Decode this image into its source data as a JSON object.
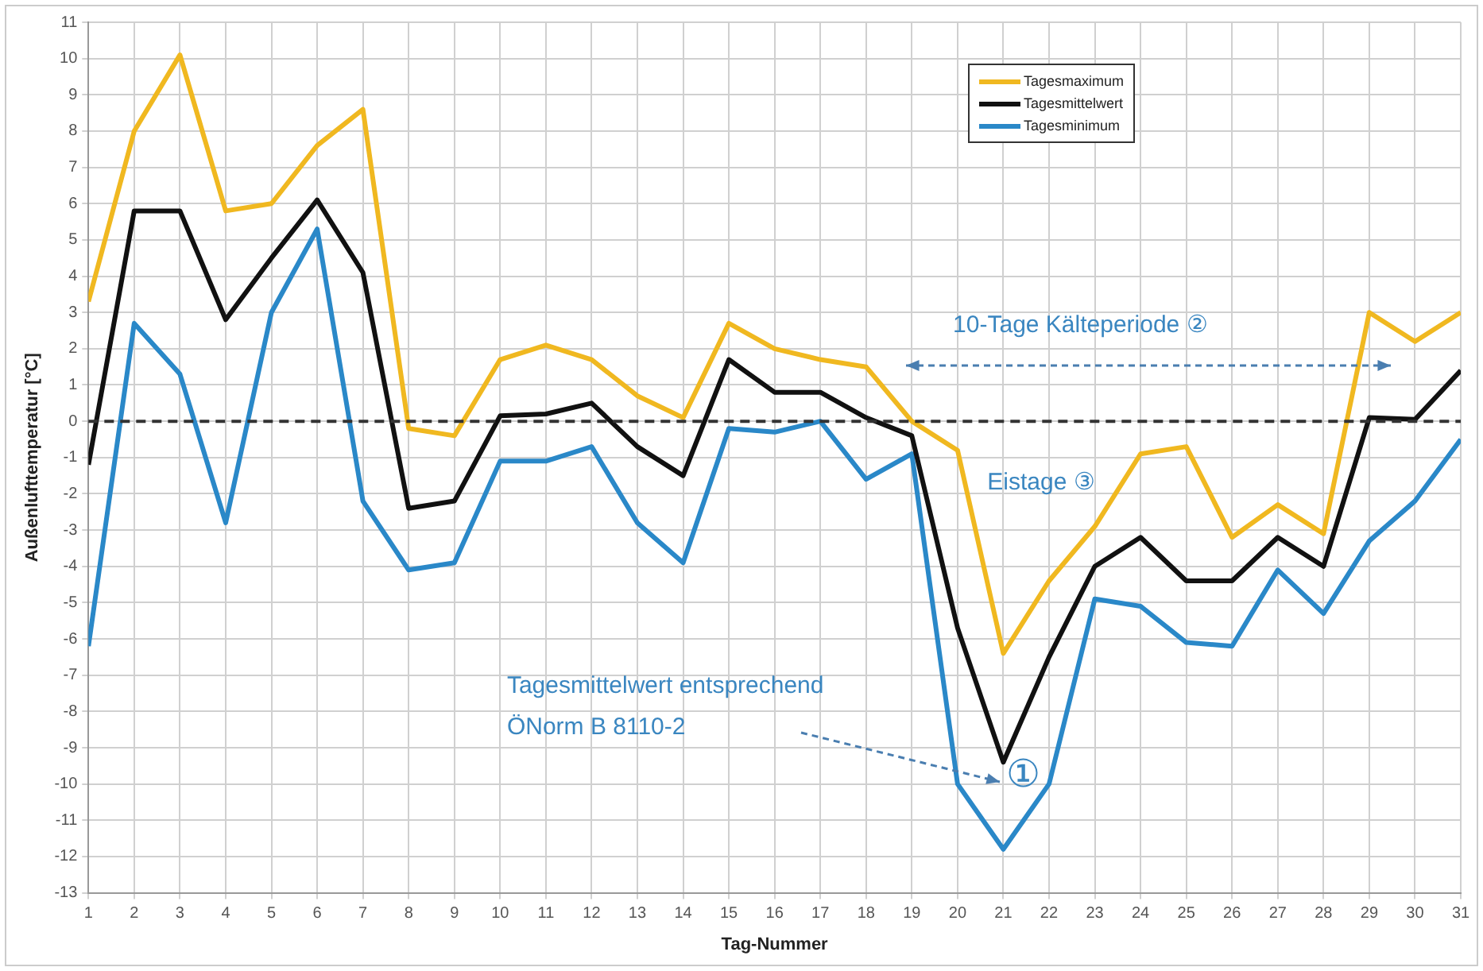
{
  "chart_data": {
    "type": "line",
    "xlabel": "Tag-Nummer",
    "ylabel": "Außenlufttemperatur [°C]",
    "x": [
      1,
      2,
      3,
      4,
      5,
      6,
      7,
      8,
      9,
      10,
      11,
      12,
      13,
      14,
      15,
      16,
      17,
      18,
      19,
      20,
      21,
      22,
      23,
      24,
      25,
      26,
      27,
      28,
      29,
      30,
      31
    ],
    "series": [
      {
        "name": "Tagesmaximum",
        "color": "#f0b820",
        "values": [
          3.3,
          8,
          10.1,
          5.8,
          6.0,
          7.6,
          8.6,
          -0.2,
          -0.4,
          1.7,
          2.1,
          1.7,
          0.7,
          0.1,
          2.7,
          2.0,
          1.7,
          1.5,
          0,
          -0.8,
          -6.4,
          -4.4,
          -2.9,
          -0.9,
          -0.7,
          -3.2,
          -2.3,
          -3.1,
          3.0,
          2.2,
          3.0
        ]
      },
      {
        "name": "Tagesmittelwert",
        "color": "#111111",
        "values": [
          -1.2,
          5.8,
          5.8,
          2.8,
          4.5,
          6.1,
          4.1,
          -2.4,
          -2.2,
          0.15,
          0.2,
          0.5,
          -0.7,
          -1.5,
          1.7,
          0.8,
          0.8,
          0.1,
          -0.4,
          -5.7,
          -9.4,
          -6.5,
          -4.0,
          -3.2,
          -4.4,
          -4.4,
          -3.2,
          -4.0,
          0.1,
          0.05,
          1.4
        ]
      },
      {
        "name": "Tagesminimum",
        "color": "#2a88c8",
        "values": [
          -6.2,
          2.7,
          1.3,
          -2.8,
          3.0,
          5.3,
          -2.2,
          -4.1,
          -3.9,
          -1.1,
          -1.1,
          -0.7,
          -2.8,
          -3.9,
          -0.2,
          -0.3,
          0,
          -1.6,
          -0.9,
          -10.0,
          -11.8,
          -10.0,
          -4.9,
          -5.1,
          -6.1,
          -6.2,
          -4.1,
          -5.3,
          -3.3,
          -2.2,
          -0.5
        ]
      }
    ],
    "xlim": [
      1,
      31
    ],
    "xticks": [
      1,
      2,
      3,
      4,
      5,
      6,
      7,
      8,
      9,
      10,
      11,
      12,
      13,
      14,
      15,
      16,
      17,
      18,
      19,
      20,
      21,
      22,
      23,
      24,
      25,
      26,
      27,
      28,
      29,
      30,
      31
    ],
    "ylim": [
      -13,
      11
    ],
    "yticks": [
      -13,
      -12,
      -11,
      -10,
      -9,
      -8,
      -7,
      -6,
      -5,
      -4,
      -3,
      -2,
      -1,
      0,
      1,
      2,
      3,
      4,
      5,
      6,
      7,
      8,
      9,
      10,
      11
    ],
    "ref_lines": [
      {
        "axis": "y",
        "value": 0,
        "color": "#333333",
        "line_style": "dashed"
      }
    ],
    "annotations": [
      "10-Tage Kälteperiode ②",
      "Eistage ③",
      "Tagesmittelwert entsprechend ÖNorm B 8110-2",
      {
        "text": "①",
        "x": 21,
        "y": -9.4
      }
    ],
    "grid": true,
    "legend": "top right",
    "marker": "none",
    "line_style": "solid"
  }
}
